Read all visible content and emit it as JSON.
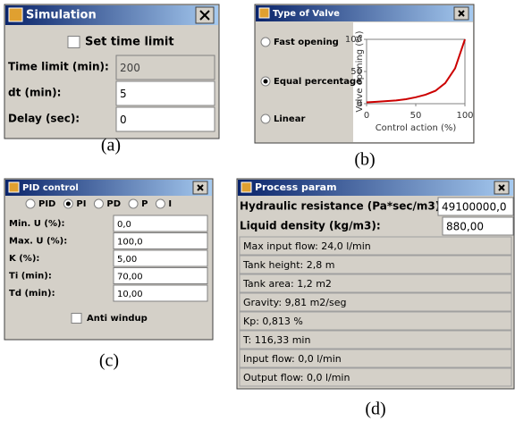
{
  "panels": [
    {
      "caption": "(a)",
      "title": "Simulation",
      "checkbox": "Set time limit",
      "fields": [
        {
          "label": "Time limit (min):",
          "value": "200",
          "disabled": true
        },
        {
          "label": "dt (min):",
          "value": "5"
        },
        {
          "label": "Delay (sec):",
          "value": "0"
        }
      ]
    },
    {
      "caption": "(b)",
      "title": "Type of Valve",
      "options": [
        "Fast opening",
        "Equal percentage",
        "Linear"
      ],
      "selected": 1,
      "chart": {
        "type": "line",
        "y_label": "Valve opening (%)",
        "x_label": "Control action (%)",
        "xlim": [
          0,
          100
        ],
        "ylim": [
          0,
          100
        ],
        "xticks": [
          0,
          50,
          100
        ],
        "yticks": [
          0,
          50,
          100
        ],
        "color": "#cc0000",
        "x": [
          0,
          10,
          20,
          30,
          40,
          50,
          60,
          70,
          80,
          90,
          100
        ],
        "y": [
          2,
          3,
          4,
          5,
          7,
          10,
          14,
          20,
          32,
          55,
          100
        ]
      }
    },
    {
      "caption": "(c)",
      "title": "PID control",
      "options": [
        "PID",
        "PI",
        "PD",
        "P",
        "I"
      ],
      "selected": 1,
      "fields": [
        {
          "label": "Min. U (%):",
          "value": "0,0"
        },
        {
          "label": "Max. U (%):",
          "value": "100,0"
        },
        {
          "label": "K (%):",
          "value": "5,00"
        },
        {
          "label": "Ti (min):",
          "value": "70,00"
        },
        {
          "label": "Td (min):",
          "value": "10,00"
        }
      ],
      "checkbox": "Anti windup"
    },
    {
      "caption": "(d)",
      "title": "Process param",
      "fields": [
        {
          "label": "Hydraulic resistance (Pa*sec/m3):",
          "value": "49100000,0"
        },
        {
          "label": "Liquid density (kg/m3):",
          "value": "880,00"
        }
      ],
      "info": [
        "Max input flow: 24,0 l/min",
        "Tank height: 2,8 m",
        "Tank area: 1,2 m2",
        "Gravity: 9,81 m2/seg",
        "Kp: 0,813 %",
        "T: 116,33 min",
        "Input flow: 0,0 l/min",
        "Output flow: 0,0 l/min"
      ]
    }
  ]
}
